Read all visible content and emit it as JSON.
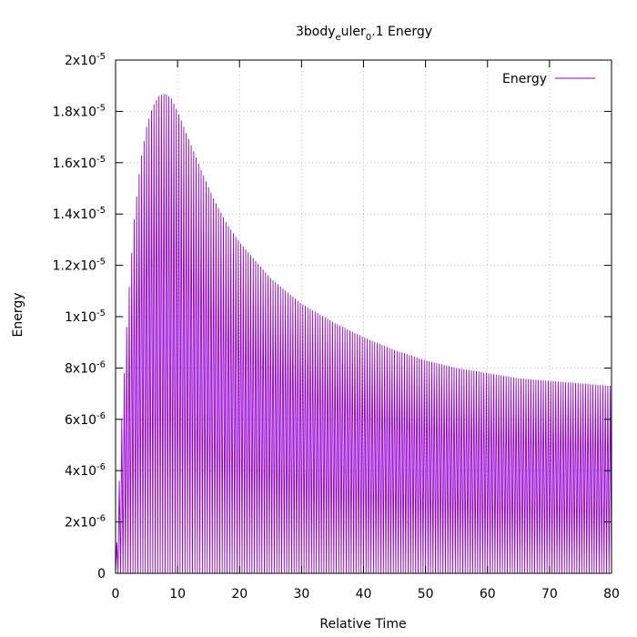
{
  "chart_data": {
    "type": "line",
    "title": {
      "base": "3body",
      "sub1": "e",
      "mid": "uler",
      "sub2": "0",
      "tail": ".1 Energy"
    },
    "xlabel": "Relative Time",
    "ylabel": "Energy",
    "xlim": [
      0,
      80
    ],
    "ylim": [
      0,
      2e-05
    ],
    "x_ticks": [
      {
        "value": 0,
        "label": "0"
      },
      {
        "value": 10,
        "label": "10"
      },
      {
        "value": 20,
        "label": "20"
      },
      {
        "value": 30,
        "label": "30"
      },
      {
        "value": 40,
        "label": "40"
      },
      {
        "value": 50,
        "label": "50"
      },
      {
        "value": 60,
        "label": "60"
      },
      {
        "value": 70,
        "label": "70"
      },
      {
        "value": 80,
        "label": "80"
      }
    ],
    "y_ticks": [
      {
        "value": 0,
        "mant": "0",
        "exp": ""
      },
      {
        "value": 2e-06,
        "mant": "2x10",
        "exp": "-6"
      },
      {
        "value": 4e-06,
        "mant": "4x10",
        "exp": "-6"
      },
      {
        "value": 6e-06,
        "mant": "6x10",
        "exp": "-6"
      },
      {
        "value": 8e-06,
        "mant": "8x10",
        "exp": "-6"
      },
      {
        "value": 1e-05,
        "mant": "1x10",
        "exp": "-5"
      },
      {
        "value": 1.2e-05,
        "mant": "1.2x10",
        "exp": "-5"
      },
      {
        "value": 1.4e-05,
        "mant": "1.4x10",
        "exp": "-5"
      },
      {
        "value": 1.6e-05,
        "mant": "1.6x10",
        "exp": "-5"
      },
      {
        "value": 1.8e-05,
        "mant": "1.8x10",
        "exp": "-5"
      },
      {
        "value": 2e-05,
        "mant": "2x10",
        "exp": "-5"
      }
    ],
    "grid": true,
    "legend_position": "top-right",
    "series": [
      {
        "name": "Energy",
        "color": "#9400d3",
        "oscillation_period": 0.4,
        "envelope_max": {
          "x": [
            0,
            1,
            2,
            3,
            4,
            5,
            6,
            7,
            8,
            9,
            10,
            12,
            14,
            16,
            18,
            20,
            25,
            30,
            35,
            40,
            45,
            50,
            55,
            60,
            65,
            70,
            75,
            80
          ],
          "y": [
            0,
            6e-06,
            1.05e-05,
            1.38e-05,
            1.6e-05,
            1.74e-05,
            1.82e-05,
            1.86e-05,
            1.87e-05,
            1.85e-05,
            1.8e-05,
            1.68e-05,
            1.56e-05,
            1.45e-05,
            1.36e-05,
            1.29e-05,
            1.15e-05,
            1.05e-05,
            9.8e-06,
            9.2e-06,
            8.7e-06,
            8.3e-06,
            8e-06,
            7.8e-06,
            7.6e-06,
            7.5e-06,
            7.4e-06,
            7.3e-06
          ]
        },
        "envelope_min": {
          "x": [
            0,
            80
          ],
          "y": [
            0,
            0
          ]
        }
      }
    ]
  }
}
